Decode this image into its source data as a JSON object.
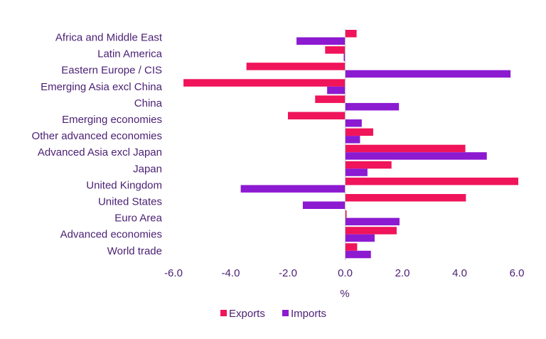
{
  "chart_data": {
    "type": "bar",
    "orientation": "horizontal",
    "title": "",
    "xlabel": "%",
    "ylabel": "",
    "xlim": [
      -6.0,
      6.0
    ],
    "xticks": [
      -6.0,
      -4.0,
      -2.0,
      0.0,
      2.0,
      4.0,
      6.0
    ],
    "xtick_labels": [
      "-6.0",
      "-4.0",
      "-2.0",
      "0.0",
      "2.0",
      "4.0",
      "6.0"
    ],
    "grid": false,
    "legend_position": "bottom-center",
    "categories": [
      "Africa and Middle East",
      "Latin America",
      "Eastern Europe / CIS",
      "Emerging Asia excl China",
      "China",
      "Emerging economies",
      "Other advanced economies",
      "Advanced Asia excl Japan",
      "Japan",
      "United Kingdom",
      "United States",
      "Euro Area",
      "Advanced economies",
      "World trade"
    ],
    "series": [
      {
        "name": "Exports",
        "color": "#f0145a",
        "values": [
          0.4,
          -0.7,
          -3.45,
          -5.65,
          -1.05,
          -2.0,
          0.98,
          4.2,
          1.62,
          6.05,
          4.22,
          0.05,
          1.8,
          0.42
        ]
      },
      {
        "name": "Imports",
        "color": "#8c1ad1",
        "values": [
          -1.7,
          -0.05,
          5.78,
          -0.63,
          1.88,
          0.58,
          0.52,
          4.95,
          0.78,
          -3.65,
          -1.48,
          1.9,
          1.03,
          0.9
        ]
      }
    ]
  }
}
